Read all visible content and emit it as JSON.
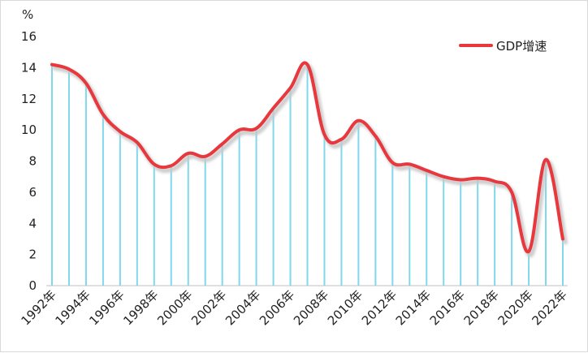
{
  "chart_data": {
    "type": "line",
    "unit_label": "%",
    "ylim": [
      0,
      16
    ],
    "yticks": [
      0,
      2,
      4,
      6,
      8,
      10,
      12,
      14,
      16
    ],
    "x": [
      1992,
      1993,
      1994,
      1995,
      1996,
      1997,
      1998,
      1999,
      2000,
      2001,
      2002,
      2003,
      2004,
      2005,
      2006,
      2007,
      2008,
      2009,
      2010,
      2011,
      2012,
      2013,
      2014,
      2015,
      2016,
      2017,
      2018,
      2019,
      2020,
      2021,
      2022
    ],
    "x_tick_labels": [
      "1992年",
      "1994年",
      "1996年",
      "1998年",
      "2000年",
      "2002年",
      "2004年",
      "2006年",
      "2008年",
      "2010年",
      "2012年",
      "2014年",
      "2016年",
      "2018年",
      "2020年",
      "2022年"
    ],
    "series": [
      {
        "name": "GDP增速",
        "values": [
          14.2,
          13.9,
          13.0,
          11.0,
          9.9,
          9.2,
          7.8,
          7.7,
          8.5,
          8.3,
          9.1,
          10.0,
          10.1,
          11.4,
          12.7,
          14.2,
          9.7,
          9.4,
          10.6,
          9.6,
          7.9,
          7.8,
          7.4,
          7.0,
          6.8,
          6.9,
          6.7,
          6.0,
          2.2,
          8.1,
          3.0
        ]
      }
    ],
    "legend_position": "top-right",
    "grid": false,
    "colors": {
      "line": "#e8383d",
      "shadow": "#c8c8c8",
      "drop_lines": "#7fd8ec",
      "axis": "#bfbfbf"
    }
  }
}
